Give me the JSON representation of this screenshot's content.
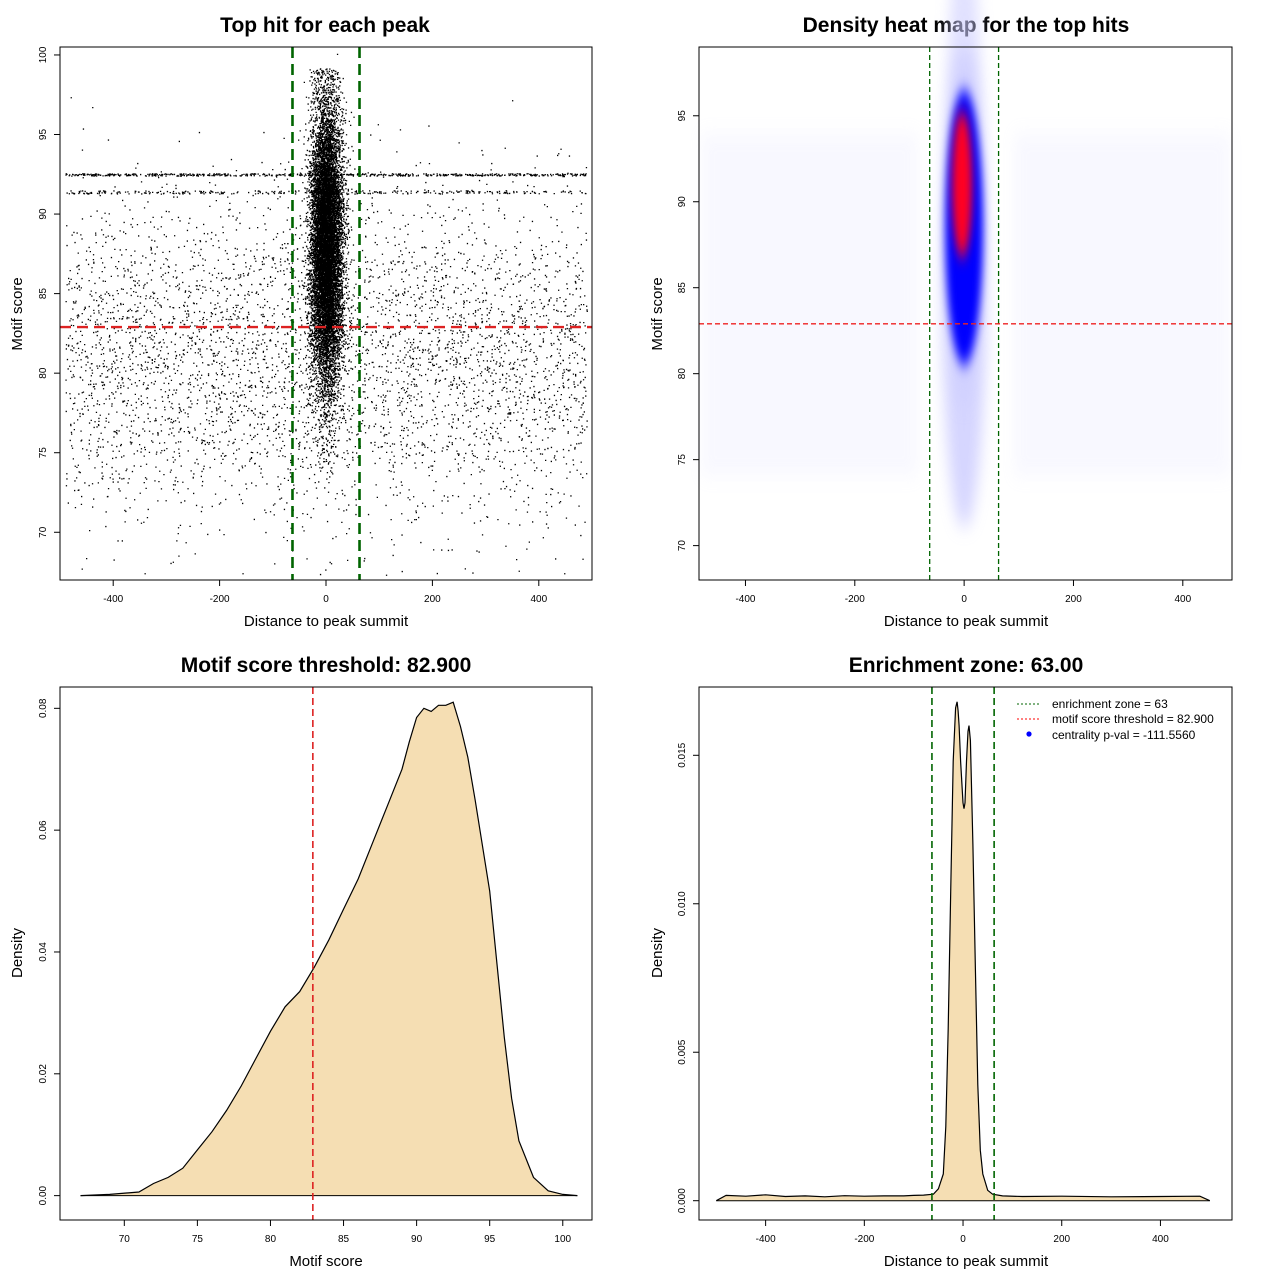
{
  "chart_data": [
    {
      "type": "scatter",
      "title": "Top hit for each peak",
      "xlabel": "Distance to peak summit",
      "ylabel": "Motif score",
      "xlim": [
        -500,
        500
      ],
      "ylim": [
        67,
        100.5
      ],
      "x_ticks": [
        -400,
        -200,
        0,
        200,
        400
      ],
      "y_ticks": [
        70,
        75,
        80,
        85,
        90,
        95,
        100
      ],
      "reference_lines": {
        "enrichment_zone": [
          -63,
          63
        ],
        "motif_score_threshold": 82.9
      },
      "colors": {
        "points": "#000000",
        "zone": "#006400",
        "threshold": "#dd2222"
      },
      "point_distribution": {
        "central_cluster": {
          "x_mean": 0,
          "x_sd": 15,
          "y_mean": 88,
          "y_sd": 4.5,
          "approx_points": 12000
        },
        "background": {
          "x_range": [
            -490,
            490
          ],
          "y_range": [
            70,
            97
          ],
          "approx_points": 4500
        }
      }
    },
    {
      "type": "heatmap",
      "title": "Density heat map for the top hits",
      "xlabel": "Distance to peak summit",
      "ylabel": "Motif score",
      "xlim": [
        -485,
        490
      ],
      "ylim": [
        68,
        99
      ],
      "x_ticks": [
        -400,
        -200,
        0,
        200,
        400
      ],
      "y_ticks": [
        70,
        75,
        80,
        85,
        90,
        95
      ],
      "reference_lines": {
        "enrichment_zone": [
          -63,
          63
        ],
        "motif_score_threshold": 82.9
      },
      "color_scale": [
        "#ffffff",
        "#0000ff",
        "#ff0000"
      ],
      "peak_region": {
        "x_center": 0,
        "y_center": 91,
        "y_range": [
          72,
          99
        ]
      }
    },
    {
      "type": "area",
      "title": "Motif score threshold: 82.900",
      "xlabel": "Motif score",
      "ylabel": "Density",
      "xlim": [
        65.6,
        102
      ],
      "ylim": [
        -0.004,
        0.0835
      ],
      "x_ticks": [
        70,
        75,
        80,
        85,
        90,
        95,
        100
      ],
      "y_ticks": [
        0.0,
        0.02,
        0.04,
        0.06,
        0.08
      ],
      "y_tick_labels": [
        "0.00",
        "0.02",
        "0.04",
        "0.06",
        "0.08"
      ],
      "fill_color": "#f5deb3",
      "threshold": 82.9,
      "x": [
        67,
        69,
        71,
        72,
        73,
        74,
        75,
        76,
        77,
        78,
        79,
        80,
        81,
        82,
        83,
        84,
        85,
        86,
        87,
        88,
        89,
        89.5,
        90,
        90.5,
        91,
        91.5,
        92,
        92.5,
        93,
        93.5,
        94,
        95,
        95.5,
        96,
        96.5,
        97,
        98,
        99,
        100,
        101
      ],
      "y": [
        0.0,
        0.0002,
        0.0006,
        0.002,
        0.003,
        0.0045,
        0.0075,
        0.0105,
        0.014,
        0.018,
        0.0225,
        0.027,
        0.031,
        0.0335,
        0.0375,
        0.042,
        0.047,
        0.052,
        0.058,
        0.064,
        0.07,
        0.0745,
        0.0785,
        0.08,
        0.0795,
        0.0805,
        0.0805,
        0.081,
        0.077,
        0.072,
        0.065,
        0.05,
        0.038,
        0.026,
        0.016,
        0.009,
        0.003,
        0.0008,
        0.0002,
        0.0
      ]
    },
    {
      "type": "area",
      "title": "Enrichment zone: 63.00",
      "xlabel": "Distance to peak summit",
      "ylabel": "Density",
      "xlim": [
        -535,
        545
      ],
      "ylim": [
        -0.00065,
        0.0173
      ],
      "x_ticks": [
        -400,
        -200,
        0,
        200,
        400
      ],
      "y_ticks": [
        0.0,
        0.005,
        0.01,
        0.015
      ],
      "y_tick_labels": [
        "0.000",
        "0.005",
        "0.010",
        "0.015"
      ],
      "fill_color": "#f5deb3",
      "zone": [
        -63,
        63
      ],
      "x": [
        -500,
        -480,
        -440,
        -400,
        -360,
        -320,
        -280,
        -240,
        -200,
        -160,
        -120,
        -100,
        -80,
        -60,
        -50,
        -40,
        -35,
        -30,
        -25,
        -20,
        -15,
        -12,
        -10,
        -8,
        -5,
        0,
        2,
        4,
        7,
        10,
        12,
        15,
        20,
        25,
        30,
        35,
        40,
        50,
        60,
        80,
        120,
        200,
        300,
        400,
        480,
        500
      ],
      "y": [
        0.0,
        0.00018,
        0.00015,
        0.0002,
        0.00014,
        0.00016,
        0.00013,
        0.00017,
        0.00015,
        0.00016,
        0.00016,
        0.00018,
        0.00019,
        0.00022,
        0.0004,
        0.0009,
        0.0025,
        0.0058,
        0.0104,
        0.0148,
        0.0166,
        0.0168,
        0.0165,
        0.016,
        0.0148,
        0.0134,
        0.0132,
        0.0134,
        0.0148,
        0.0158,
        0.016,
        0.0155,
        0.012,
        0.0078,
        0.0039,
        0.0017,
        0.0009,
        0.00035,
        0.00022,
        0.00016,
        0.00014,
        0.00015,
        0.00013,
        0.00014,
        0.00015,
        0.0
      ],
      "legend": {
        "position": "top-right",
        "entries": [
          {
            "label": "enrichment zone = 63",
            "color": "#006400",
            "symbol": "dotted-line"
          },
          {
            "label": "motif score threshold = 82.900",
            "color": "#ff0000",
            "symbol": "dotted-line"
          },
          {
            "label": "centrality p-val = -111.5560",
            "color": "#0000ff",
            "symbol": "dot"
          }
        ]
      }
    }
  ]
}
